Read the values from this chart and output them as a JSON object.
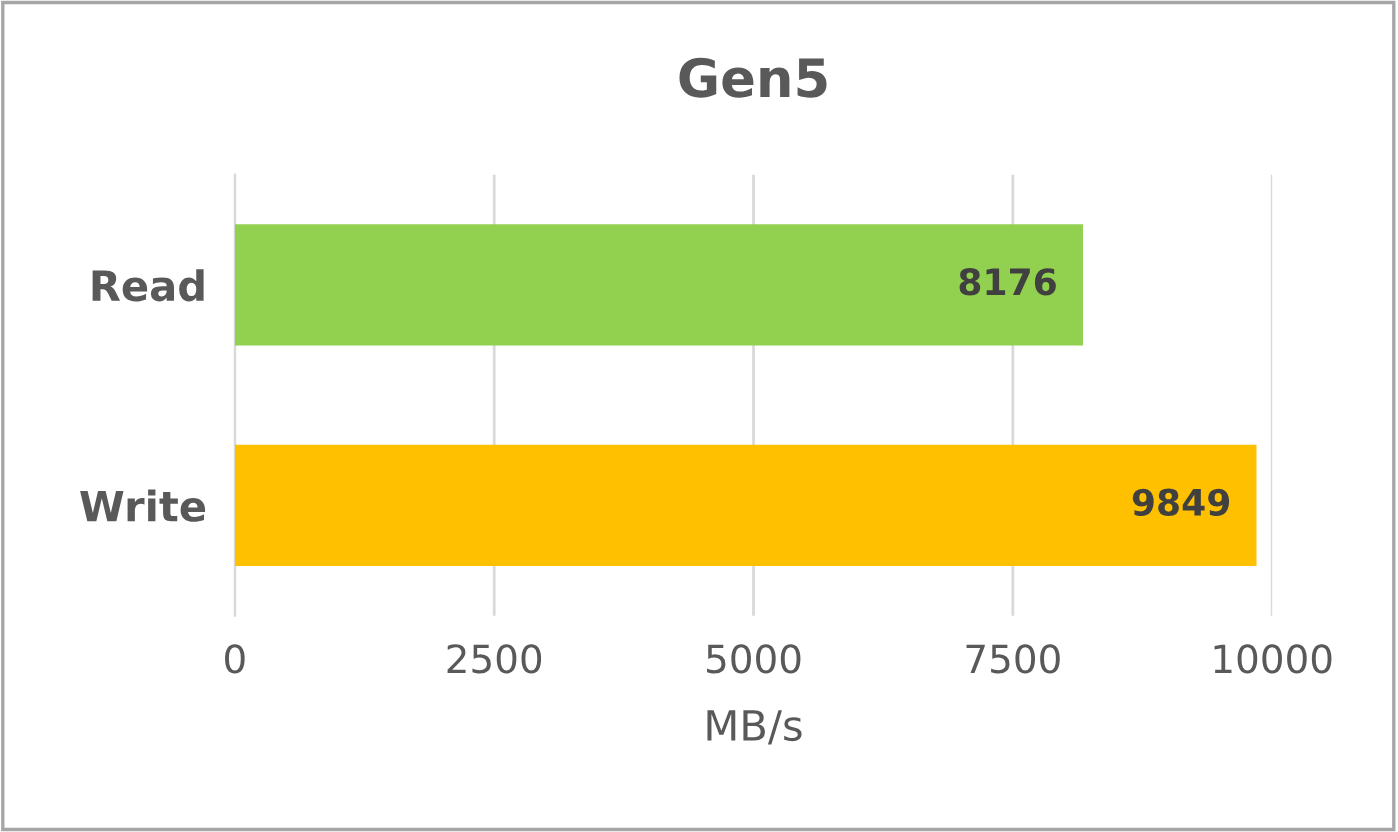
{
  "chart_data": {
    "type": "bar",
    "orientation": "horizontal",
    "title": "Gen5",
    "xlabel": "MB/s",
    "categories": [
      "Read",
      "Write"
    ],
    "values": [
      8176,
      9849
    ],
    "colors": [
      "#92d050",
      "#ffc000"
    ],
    "xlim": [
      0,
      10000
    ],
    "xticks": [
      0,
      2500,
      5000,
      7500,
      10000
    ],
    "grid": "x",
    "data_labels": true,
    "legend": false
  }
}
